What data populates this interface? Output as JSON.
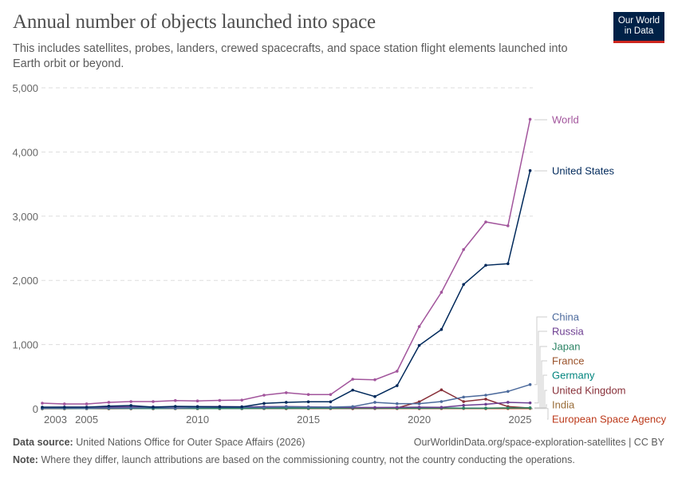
{
  "header": {
    "title": "Annual number of objects launched into space",
    "subtitle": "This includes satellites, probes, landers, crewed spacecrafts, and space station flight elements launched into Earth orbit or beyond.",
    "logo_line1": "Our World",
    "logo_line2": "in Data"
  },
  "footer": {
    "source_label": "Data source:",
    "source_text": "United Nations Office for Outer Space Affairs (2026)",
    "url": "OurWorldinData.org/space-exploration-satellites | CC BY",
    "note_label": "Note:",
    "note_text": "Where they differ, launch attributions are based on the commissioning country, not the country conducting the operations."
  },
  "chart_data": {
    "type": "line",
    "x": [
      2003,
      2004,
      2005,
      2006,
      2007,
      2008,
      2009,
      2010,
      2011,
      2012,
      2013,
      2014,
      2015,
      2016,
      2017,
      2018,
      2019,
      2020,
      2021,
      2022,
      2023,
      2024,
      2025
    ],
    "xticks": [
      "2003",
      "2005",
      "2010",
      "2015",
      "2020",
      "2025"
    ],
    "yticks": [
      "0",
      "1,000",
      "2,000",
      "3,000",
      "4,000",
      "5,000"
    ],
    "ylim": [
      0,
      5000
    ],
    "grid": "horizontal dashed",
    "legend": "right, line-end labels",
    "series": [
      {
        "name": "World",
        "color": "#a2559c",
        "values": [
          87,
          75,
          75,
          100,
          112,
          112,
          128,
          122,
          130,
          135,
          211,
          250,
          222,
          222,
          460,
          452,
          585,
          1280,
          1815,
          2480,
          2910,
          2850,
          4510
        ]
      },
      {
        "name": "United States",
        "color": "#00295b",
        "values": [
          25,
          25,
          25,
          41,
          50,
          25,
          37,
          33,
          30,
          30,
          83,
          100,
          108,
          108,
          290,
          190,
          360,
          987,
          1235,
          1937,
          2235,
          2260,
          3710
        ]
      },
      {
        "name": "China",
        "color": "#4c6a9c",
        "values": [
          6,
          8,
          6,
          10,
          12,
          18,
          8,
          20,
          22,
          22,
          20,
          30,
          25,
          25,
          33,
          100,
          79,
          79,
          112,
          182,
          211,
          270,
          377
        ]
      },
      {
        "name": "Russia",
        "color": "#6d3e91",
        "values": [
          22,
          25,
          25,
          28,
          30,
          30,
          30,
          34,
          35,
          30,
          32,
          35,
          30,
          25,
          20,
          20,
          22,
          25,
          22,
          54,
          70,
          100,
          91
        ]
      },
      {
        "name": "Japan",
        "color": "#2c8465",
        "values": [
          5,
          4,
          4,
          6,
          5,
          4,
          6,
          5,
          4,
          6,
          8,
          10,
          8,
          10,
          12,
          12,
          10,
          10,
          12,
          10,
          8,
          12,
          14
        ]
      },
      {
        "name": "France",
        "color": "#9a5129",
        "values": [
          3,
          3,
          4,
          5,
          4,
          3,
          4,
          5,
          4,
          6,
          5,
          6,
          4,
          5,
          6,
          7,
          5,
          6,
          7,
          6,
          6,
          8,
          8
        ]
      },
      {
        "name": "Germany",
        "color": "#00847e",
        "values": [
          2,
          3,
          3,
          4,
          4,
          3,
          3,
          4,
          4,
          3,
          4,
          5,
          5,
          5,
          6,
          6,
          7,
          8,
          8,
          8,
          9,
          10,
          10
        ]
      },
      {
        "name": "United Kingdom",
        "color": "#883039",
        "values": [
          2,
          2,
          2,
          3,
          2,
          2,
          3,
          2,
          3,
          3,
          4,
          5,
          3,
          4,
          5,
          6,
          12,
          108,
          295,
          112,
          150,
          34,
          11
        ]
      },
      {
        "name": "India",
        "color": "#996d39",
        "values": [
          2,
          2,
          3,
          2,
          2,
          3,
          3,
          4,
          3,
          4,
          3,
          4,
          6,
          10,
          12,
          10,
          8,
          5,
          6,
          8,
          10,
          12,
          15
        ]
      },
      {
        "name": "European Space Agency",
        "color": "#bc3a1b",
        "values": [
          1,
          1,
          2,
          1,
          2,
          2,
          2,
          3,
          2,
          2,
          3,
          2,
          3,
          3,
          2,
          3,
          3,
          2,
          3,
          4,
          2,
          3,
          4
        ]
      }
    ]
  }
}
